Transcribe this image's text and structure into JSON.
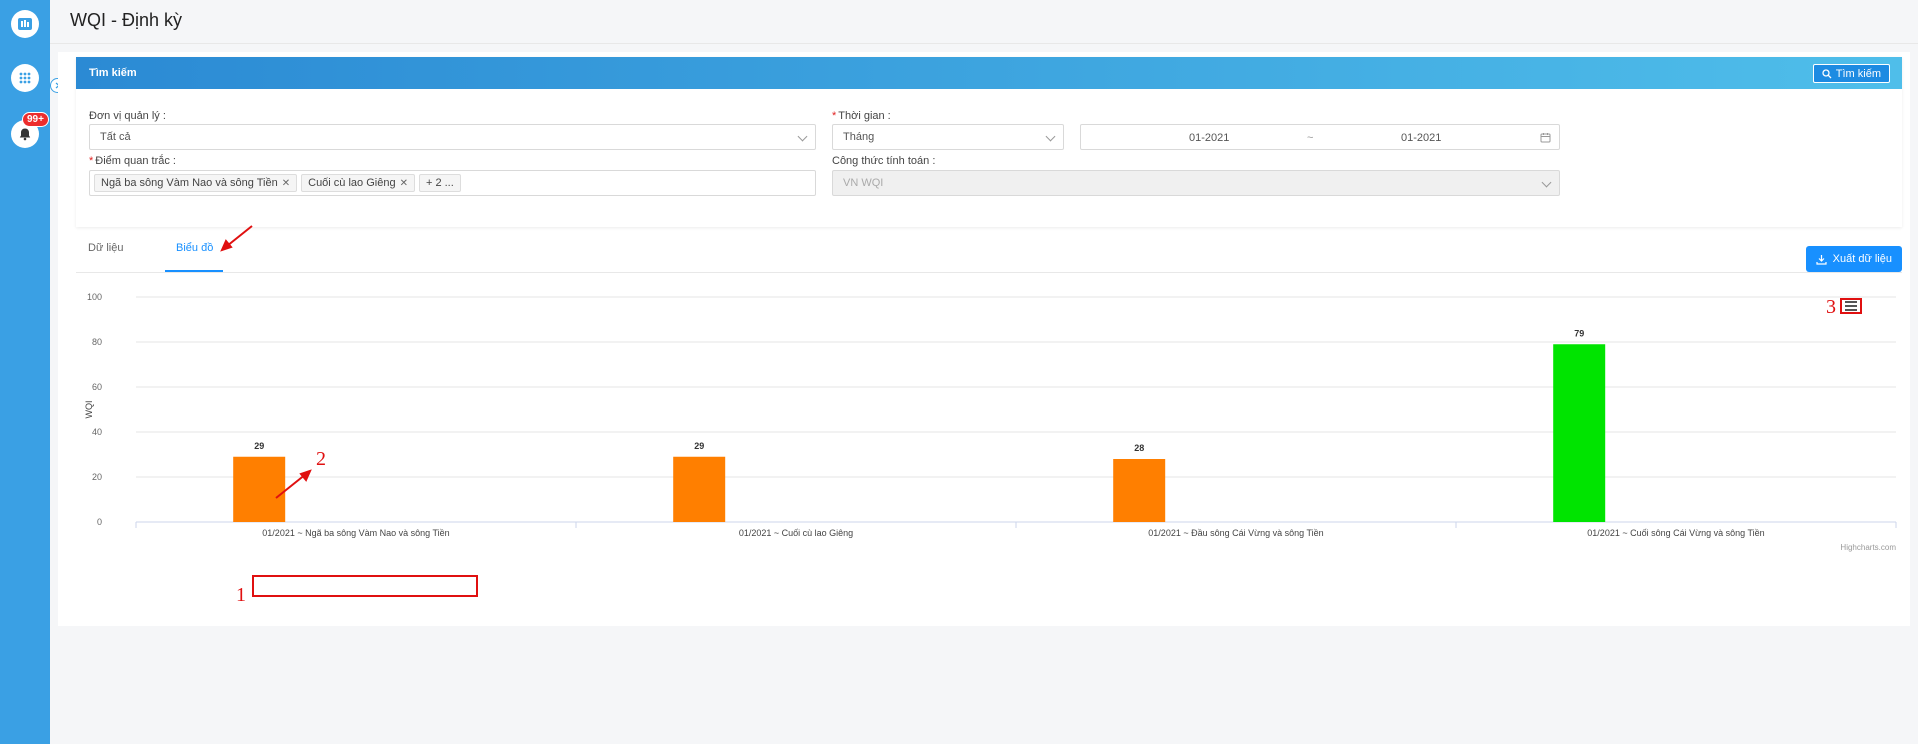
{
  "header": {
    "title": "WQI - Định kỳ"
  },
  "sidebar": {
    "badge": "99+"
  },
  "search": {
    "panel_title": "Tìm kiếm",
    "button_label": "Tìm kiếm",
    "unit_label": "Đơn vị quản lý :",
    "unit_value": "Tất cả",
    "time_label": "Thời gian :",
    "time_type": "Tháng",
    "date_from": "01-2021",
    "date_sep": "~",
    "date_to": "01-2021",
    "stations_label": "Điểm quan trắc :",
    "station_tags": [
      "Ngã ba sông Vàm Nao và sông Tiền",
      "Cuối cù lao Giêng"
    ],
    "station_more": "+ 2 ...",
    "formula_label": "Công thức tính toán :",
    "formula_value": "VN WQI"
  },
  "tabs": {
    "data": "Dữ liệu",
    "chart": "Biểu đồ"
  },
  "export_label": "Xuất dữ liệu",
  "annotations": [
    "1",
    "2",
    "3"
  ],
  "credits": "Highcharts.com",
  "colors": {
    "sidebar": "#3aa0e4",
    "accent": "#1890ff",
    "bar_orange": "#ff7f00",
    "bar_green": "#00e400"
  },
  "chart_data": {
    "type": "bar",
    "ylabel": "WQI",
    "ylim": [
      0,
      100
    ],
    "yticks": [
      0,
      20,
      40,
      60,
      80,
      100
    ],
    "categories": [
      "01/2021 ~ Ngã ba sông Vàm Nao và sông Tiền",
      "01/2021 ~ Cuối cù lao Giêng",
      "01/2021 ~ Đầu sông Cái Vừng và sông Tiền",
      "01/2021 ~ Cuối sông Cái Vừng và sông Tiền"
    ],
    "values": [
      29,
      29,
      28,
      79
    ],
    "bar_colors": [
      "#ff7f00",
      "#ff7f00",
      "#ff7f00",
      "#00e400"
    ],
    "grid": true,
    "legend": "none"
  }
}
